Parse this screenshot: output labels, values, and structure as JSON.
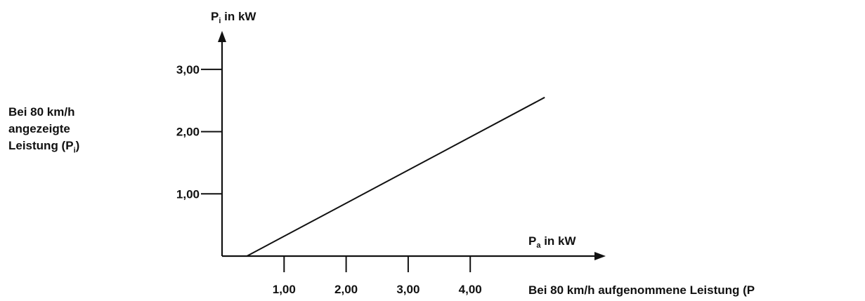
{
  "chart_data": {
    "type": "line",
    "title": "",
    "y_axis": {
      "symbol": "P",
      "subscript": "i",
      "unit_text": " in kW",
      "ticks": [
        "1,00",
        "2,00",
        "3,00"
      ],
      "tick_values": [
        1,
        2,
        3
      ]
    },
    "x_axis": {
      "symbol": "P",
      "subscript": "a",
      "unit_text": " in kW",
      "ticks": [
        "1,00",
        "2,00",
        "3,00",
        "4,00"
      ],
      "tick_values": [
        1,
        2,
        3,
        4
      ]
    },
    "ylabel_lines": [
      "Bei 80 km/h",
      "angezeigte",
      "Leistung (P"
    ],
    "ylabel_sub": "i",
    "ylabel_close": ")",
    "xlabel": "Bei 80 km/h aufgenommene Leistung (P",
    "xlim": [
      0,
      6.0
    ],
    "ylim": [
      0,
      3.6
    ],
    "series": [
      {
        "x": [
          0.4,
          5.2
        ],
        "y": [
          0.0,
          2.55
        ]
      }
    ],
    "grid": false
  }
}
